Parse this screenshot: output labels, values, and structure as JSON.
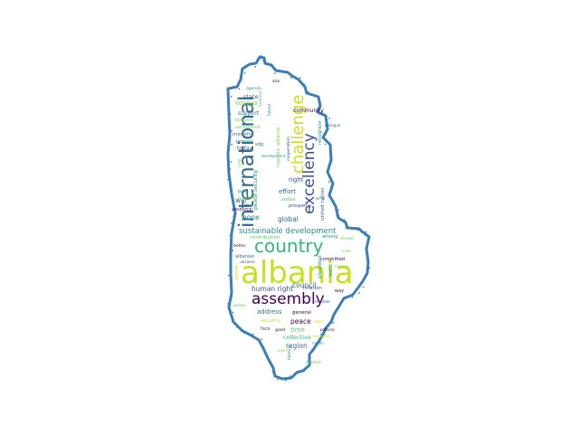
{
  "colors": {
    "outline": "#3a7fb8",
    "palette": [
      "#440154",
      "#3b528b",
      "#21918c",
      "#5ec962",
      "#c8e020",
      "#2c728e",
      "#7ad151"
    ]
  },
  "words": [
    {
      "text": "albania",
      "color": "#c8e020"
    },
    {
      "text": "country",
      "color": "#35b779"
    },
    {
      "text": "assembly",
      "color": "#440154"
    },
    {
      "text": "international",
      "color": "#31688e"
    },
    {
      "text": "challenge",
      "color": "#c8e020"
    },
    {
      "text": "excellency",
      "color": "#3b528b"
    },
    {
      "text": "sustainable development",
      "color": "#21918c"
    },
    {
      "text": "human right",
      "color": "#3b528b"
    },
    {
      "text": "council",
      "color": "#31688e"
    },
    {
      "text": "region",
      "color": "#2c728e"
    },
    {
      "text": "peace",
      "color": "#440154"
    },
    {
      "text": "hope",
      "color": "#21918c"
    },
    {
      "text": "global",
      "color": "#31688e"
    },
    {
      "text": "war",
      "color": "#2c728e"
    },
    {
      "text": "kosova",
      "color": "#7ad151"
    },
    {
      "text": "state",
      "color": "#3b528b"
    },
    {
      "text": "right",
      "color": "#3b528b"
    },
    {
      "text": "effort",
      "color": "#31688e"
    },
    {
      "text": "address",
      "color": "#2c728e"
    },
    {
      "text": "time",
      "color": "#5ec962"
    },
    {
      "text": "collective",
      "color": "#35b779"
    },
    {
      "text": "general",
      "color": "#440154"
    },
    {
      "text": "support",
      "color": "#2c728e"
    },
    {
      "text": "community",
      "color": "#440154"
    },
    {
      "text": "kosovo",
      "color": "#7ad151"
    },
    {
      "text": "remain",
      "color": "#21918c"
    },
    {
      "text": "minority",
      "color": "#31688e"
    },
    {
      "text": "today",
      "color": "#3b528b"
    },
    {
      "text": "contribution",
      "color": "#5ec962"
    },
    {
      "text": "security",
      "color": "#c8e020"
    },
    {
      "text": "peace security",
      "color": "#21918c"
    },
    {
      "text": "recognize",
      "color": "#21918c"
    },
    {
      "text": "republic albania",
      "color": "#7ad151"
    },
    {
      "text": "united nation",
      "color": "#31688e"
    },
    {
      "text": "president",
      "color": "#21918c"
    },
    {
      "text": "relation",
      "color": "#3b528b"
    },
    {
      "text": "committed",
      "color": "#440154"
    },
    {
      "text": "among",
      "color": "#21918c"
    },
    {
      "text": "one",
      "color": "#21918c"
    },
    {
      "text": "prosperity",
      "color": "#3b528b"
    },
    {
      "text": "serbia",
      "color": "#5ec962"
    },
    {
      "text": "resource",
      "color": "#440154"
    },
    {
      "text": "part",
      "color": "#21918c"
    },
    {
      "text": "albanian",
      "color": "#2c728e"
    },
    {
      "text": "ukraine",
      "color": "#3b528b"
    },
    {
      "text": "southern",
      "color": "#7ad151"
    },
    {
      "text": "agenda",
      "color": "#21918c"
    },
    {
      "text": "commitment",
      "color": "#5ec962"
    },
    {
      "text": "sdg",
      "color": "#31688e"
    },
    {
      "text": "cooperation",
      "color": "#3b528b"
    },
    {
      "text": "better",
      "color": "#440154"
    },
    {
      "text": "world",
      "color": "#21918c"
    },
    {
      "text": "way",
      "color": "#440154"
    },
    {
      "text": "face",
      "color": "#3b528b"
    },
    {
      "text": "good",
      "color": "#440154"
    },
    {
      "text": "political",
      "color": "#440154"
    },
    {
      "text": "history",
      "color": "#21918c"
    },
    {
      "text": "union",
      "color": "#7ad151"
    },
    {
      "text": "need",
      "color": "#c8e020"
    },
    {
      "text": "law",
      "color": "#3b528b"
    },
    {
      "text": "people",
      "color": "#c8e020"
    },
    {
      "text": "action",
      "color": "#5ec962"
    },
    {
      "text": "crisis",
      "color": "#7ad151"
    },
    {
      "text": "future",
      "color": "#21918c"
    },
    {
      "text": "member",
      "color": "#3b528b"
    },
    {
      "text": "balkans",
      "color": "#5ec962"
    },
    {
      "text": "european",
      "color": "#c8e020"
    },
    {
      "text": "nation",
      "color": "#21918c"
    },
    {
      "text": "also",
      "color": "#440154"
    },
    {
      "text": "dialogue",
      "color": "#31688e"
    },
    {
      "text": "climate",
      "color": "#5ec962"
    },
    {
      "text": "mission",
      "color": "#7ad151"
    },
    {
      "text": "development",
      "color": "#21918c"
    },
    {
      "text": "freedom",
      "color": "#5ec962"
    },
    {
      "text": "order",
      "color": "#7ad151"
    }
  ]
}
